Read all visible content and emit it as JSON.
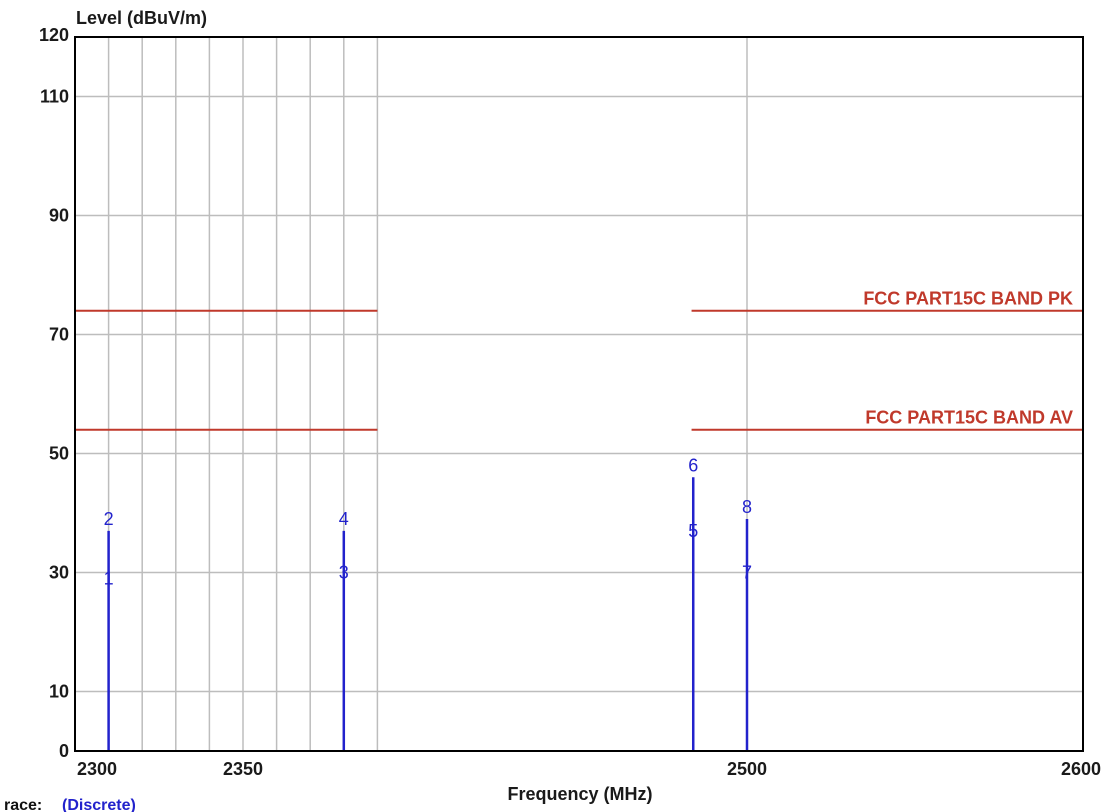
{
  "chart_data": {
    "type": "line",
    "ylabel": "Level (dBuV/m)",
    "xlabel": "Frequency (MHz)",
    "xlim": [
      2300,
      2600
    ],
    "ylim": [
      0,
      120
    ],
    "x_ticks": [
      2300,
      2350,
      2500,
      2600
    ],
    "y_ticks": [
      0,
      10,
      30,
      50,
      70,
      90,
      110,
      120
    ],
    "x_grid": [
      2300,
      2310,
      2320,
      2330,
      2340,
      2350,
      2360,
      2370,
      2380,
      2390,
      2500
    ],
    "grid": true,
    "limit_lines": [
      {
        "name": "FCC PART15C  BAND PK",
        "value": 74,
        "segments": [
          [
            2300,
            2390
          ],
          [
            2483.5,
            2600
          ]
        ],
        "color": "#c0392b"
      },
      {
        "name": "FCC PART15C  BAND AV",
        "value": 54,
        "segments": [
          [
            2300,
            2390
          ],
          [
            2483.5,
            2600
          ]
        ],
        "color": "#c0392b"
      }
    ],
    "markers": [
      {
        "label": "1",
        "x": 2310,
        "y": 27
      },
      {
        "label": "2",
        "x": 2310,
        "y": 37
      },
      {
        "label": "3",
        "x": 2380,
        "y": 28
      },
      {
        "label": "4",
        "x": 2380,
        "y": 37
      },
      {
        "label": "5",
        "x": 2484,
        "y": 35
      },
      {
        "label": "6",
        "x": 2484,
        "y": 46
      },
      {
        "label": "7",
        "x": 2500,
        "y": 28
      },
      {
        "label": "8",
        "x": 2500,
        "y": 39
      }
    ],
    "spikes": [
      {
        "x": 2310,
        "y": 37
      },
      {
        "x": 2380,
        "y": 37
      },
      {
        "x": 2484,
        "y": 46
      },
      {
        "x": 2500,
        "y": 39
      }
    ],
    "trace_prefix": "race:",
    "trace_name": "(Discrete)"
  },
  "colors": {
    "marker": "#2222cc",
    "limit": "#c0392b",
    "grid": "#bdbdbd",
    "axis": "#000000"
  }
}
